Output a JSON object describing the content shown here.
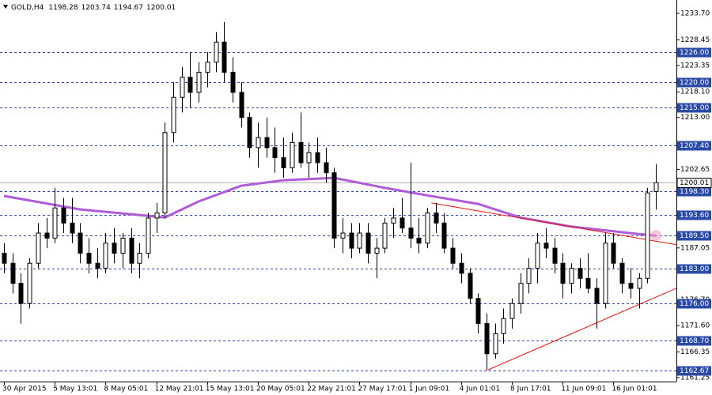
{
  "chart_data": {
    "type": "candlestick",
    "symbol": "GOLD,H4",
    "categories": [
      "30 Apr 2015",
      null,
      null,
      null,
      null,
      null,
      "5 May 13:01",
      null,
      null,
      null,
      null,
      null,
      "8 May 05:01",
      null,
      null,
      null,
      null,
      null,
      "12 May 21:01",
      null,
      null,
      null,
      null,
      null,
      "15 May 13:01",
      null,
      null,
      null,
      null,
      null,
      "20 May 05:01",
      null,
      null,
      null,
      null,
      null,
      "22 May 21:01",
      null,
      null,
      null,
      null,
      null,
      "27 May 17:01",
      null,
      null,
      null,
      null,
      null,
      "1 Jun 09:01",
      null,
      null,
      null,
      null,
      null,
      "4 Jun 01:01",
      null,
      null,
      null,
      null,
      null,
      "8 Jun 17:01",
      null,
      null,
      null,
      null,
      null,
      "11 Jun 09:01",
      null,
      null,
      null,
      null,
      null,
      "16 Jun 01:01",
      null,
      null,
      null,
      null,
      null
    ],
    "open": [
      1186,
      1184,
      1180,
      1176,
      1184,
      1190,
      1189,
      1195,
      1192,
      1190,
      1186,
      1184,
      1183,
      1188,
      1186,
      1189,
      1184,
      1186,
      1193,
      1194,
      1210,
      1217,
      1221,
      1218,
      1222,
      1224,
      1228,
      1222,
      1218,
      1213,
      1207,
      1209,
      1207,
      1205,
      1203,
      1208,
      1204,
      1206,
      1204,
      1202,
      1189,
      1190,
      1187,
      1190,
      1186,
      1187,
      1192,
      1193,
      1191,
      1189,
      1188,
      1194,
      1192,
      1187,
      1184,
      1182,
      1177,
      1172,
      1166,
      1170,
      1173,
      1176,
      1180,
      1183,
      1188,
      1187,
      1184,
      1180,
      1183,
      1181,
      1179,
      1176,
      1188,
      1184,
      1180,
      1179,
      1181,
      1198.28
    ],
    "high": [
      1188,
      1186,
      1182,
      1185,
      1192,
      1193,
      1199,
      1197,
      1197,
      1192,
      1189,
      1187,
      1190,
      1191,
      1190,
      1191,
      1188,
      1194,
      1196,
      1212,
      1220,
      1223,
      1226,
      1224,
      1226,
      1230,
      1232,
      1225,
      1220,
      1214,
      1212,
      1213,
      1211,
      1209,
      1210,
      1214,
      1208,
      1209,
      1207,
      1203,
      1193,
      1192,
      1192,
      1192,
      1189,
      1193,
      1195,
      1197,
      1204,
      1193,
      1195,
      1196,
      1194,
      1189,
      1186,
      1183,
      1178,
      1174,
      1172,
      1175,
      1177,
      1182,
      1185,
      1190,
      1191,
      1189,
      1186,
      1184,
      1185,
      1186,
      1181,
      1190,
      1190,
      1185,
      1183,
      1182,
      1199,
      1203.74
    ],
    "low": [
      1182,
      1178,
      1172,
      1175,
      1183,
      1187,
      1188,
      1190,
      1188,
      1184,
      1182,
      1181,
      1182,
      1184,
      1183,
      1182,
      1181,
      1185,
      1190,
      1193,
      1208,
      1214,
      1215,
      1216,
      1219,
      1222,
      1220,
      1216,
      1211,
      1205,
      1203,
      1205,
      1202,
      1201,
      1202,
      1203,
      1201,
      1202,
      1200,
      1187,
      1186,
      1185,
      1186,
      1184,
      1181,
      1186,
      1189,
      1190,
      1187,
      1186,
      1187,
      1190,
      1186,
      1183,
      1180,
      1176,
      1170,
      1162.67,
      1165,
      1168,
      1171,
      1174,
      1178,
      1180,
      1185,
      1182,
      1177,
      1178,
      1179,
      1178,
      1171,
      1175,
      1183,
      1178,
      1177,
      1175,
      1180,
      1194.67
    ],
    "close": [
      1184,
      1180,
      1176,
      1184,
      1190,
      1189,
      1195,
      1192,
      1190,
      1186,
      1184,
      1183,
      1188,
      1186,
      1189,
      1184,
      1186,
      1193,
      1194,
      1210,
      1217,
      1221,
      1218,
      1222,
      1224,
      1228,
      1222,
      1218,
      1213,
      1207,
      1209,
      1207,
      1205,
      1203,
      1208,
      1204,
      1206,
      1204,
      1202,
      1189,
      1190,
      1187,
      1190,
      1186,
      1187,
      1192,
      1193,
      1191,
      1189,
      1188,
      1194,
      1192,
      1187,
      1184,
      1182,
      1177,
      1172,
      1166,
      1170,
      1173,
      1176,
      1180,
      1183,
      1188,
      1187,
      1184,
      1180,
      1183,
      1181,
      1179,
      1176,
      1188,
      1184,
      1180,
      1179,
      1181,
      1198,
      1200.01
    ],
    "color": "#000000",
    "ylim": [
      1160.46,
      1236.37
    ],
    "yticks": [
      {
        "value": 1233.7,
        "label": "1233.70"
      },
      {
        "value": 1228.45,
        "label": "1228.45"
      },
      {
        "value": 1223.35,
        "label": "1223.35"
      },
      {
        "value": 1218.1,
        "label": "1218.10"
      },
      {
        "value": 1213,
        "label": "1213.00"
      },
      {
        "value": 1202.65,
        "label": "1202.65"
      },
      {
        "value": 1187.05,
        "label": "1187.05"
      },
      {
        "value": 1176.7,
        "label": "1176.70"
      },
      {
        "value": 1171.6,
        "label": "1171.60"
      },
      {
        "value": 1166.35,
        "label": "1166.35"
      },
      {
        "value": 1161.25,
        "label": "1161.25"
      }
    ],
    "levels": {
      "color": "#2a4aa8",
      "items": [
        {
          "value": 1226,
          "label": "1226.00"
        },
        {
          "value": 1220,
          "label": "1220.00"
        },
        {
          "value": 1215,
          "label": "1215.00"
        },
        {
          "value": 1207.4,
          "label": "1207.40"
        },
        {
          "value": 1198.3,
          "label": "1198.30"
        },
        {
          "value": 1193.6,
          "label": "1193.60"
        },
        {
          "value": 1189.5,
          "label": "1189.50"
        },
        {
          "value": 1183,
          "label": "1183.00"
        },
        {
          "value": 1176,
          "label": "1176.00"
        },
        {
          "value": 1168.7,
          "label": "1168.70"
        },
        {
          "value": 1162.67,
          "label": "1162.67"
        }
      ]
    },
    "price_line": {
      "value": 1200.01,
      "label": "1200.01",
      "color": "#b0b0b0"
    },
    "ma": {
      "color": "#b05ad8",
      "x": [
        0,
        9,
        19,
        23,
        28,
        33,
        39,
        45,
        50,
        56,
        61,
        67,
        75,
        77
      ],
      "values": [
        1197.4,
        1194.7,
        1193.1,
        1196.3,
        1199.4,
        1200.5,
        1201.0,
        1199.0,
        1197.5,
        1195.8,
        1193.1,
        1191.3,
        1189.8,
        1189.5
      ]
    },
    "trendlines": {
      "color": "#e01010",
      "lines": [
        {
          "x": [
            50.5,
            79.4
          ],
          "values": [
            1196.0,
            1187.7
          ]
        },
        {
          "x": [
            57.2,
            79.4
          ],
          "values": [
            1162.8,
            1179.0
          ]
        }
      ]
    }
  }
}
